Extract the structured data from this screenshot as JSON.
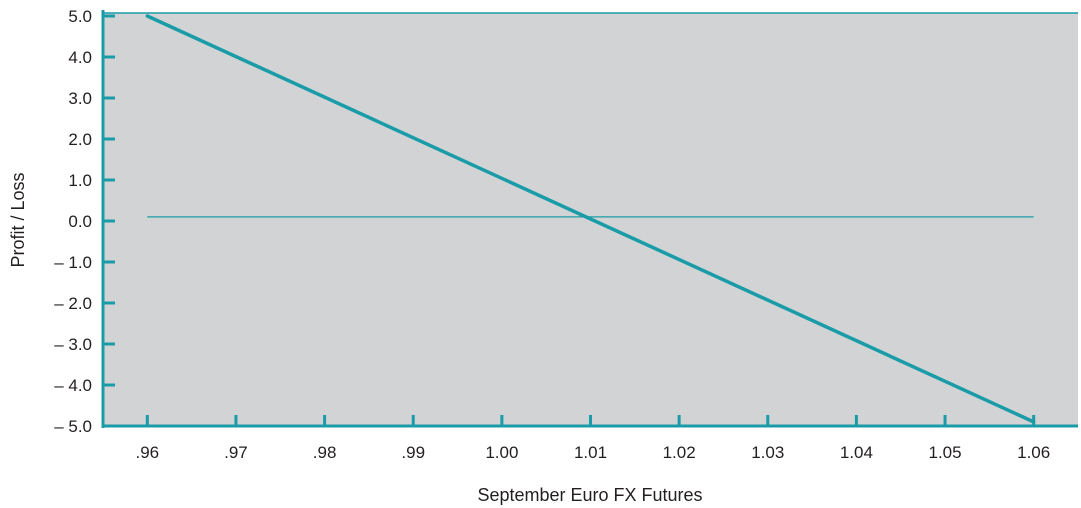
{
  "chart_data": {
    "type": "line",
    "title": "",
    "xlabel": "September Euro FX Futures",
    "ylabel": "Profit / Loss",
    "x_tick_labels": [
      ".96",
      ".97",
      ".98",
      ".99",
      "1.00",
      "1.01",
      "1.02",
      "1.03",
      "1.04",
      "1.05",
      "1.06"
    ],
    "x_tick_values": [
      0.96,
      0.97,
      0.98,
      0.99,
      1.0,
      1.01,
      1.02,
      1.03,
      1.04,
      1.05,
      1.06
    ],
    "y_tick_labels": [
      "5.0",
      "4.0",
      "3.0",
      "2.0",
      "1.0",
      "0.0",
      "– 1.0",
      "– 2.0",
      "– 3.0",
      "– 4.0",
      "– 5.0"
    ],
    "y_tick_values": [
      5,
      4,
      3,
      2,
      1,
      0,
      -1,
      -2,
      -3,
      -4,
      -5
    ],
    "xlim": [
      0.955,
      1.065
    ],
    "ylim": [
      -5,
      5
    ],
    "grid": false,
    "background_color": "#d1d3d4",
    "line_color": "#1a9ca8",
    "series": [
      {
        "x": [
          0.96,
          1.06
        ],
        "y": [
          5.0,
          -4.9
        ]
      }
    ],
    "reference_line": {
      "y": 0.1,
      "x": [
        0.96,
        1.06
      ]
    }
  }
}
